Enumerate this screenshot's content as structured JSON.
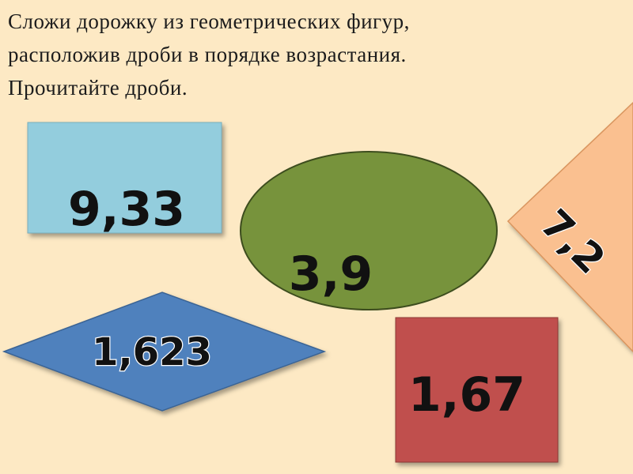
{
  "header": {
    "lines": [
      "Сложи дорожку из геометрических фигур,",
      "расположив дроби в порядке возрастания.",
      "Прочитайте дроби."
    ]
  },
  "shapes": [
    {
      "shape": "rectangle",
      "label": "9,33"
    },
    {
      "shape": "ellipse",
      "label": "3,9"
    },
    {
      "shape": "triangle",
      "label": "7,2"
    },
    {
      "shape": "rhombus",
      "label": "1,623"
    },
    {
      "shape": "square",
      "label": "1,67"
    }
  ]
}
